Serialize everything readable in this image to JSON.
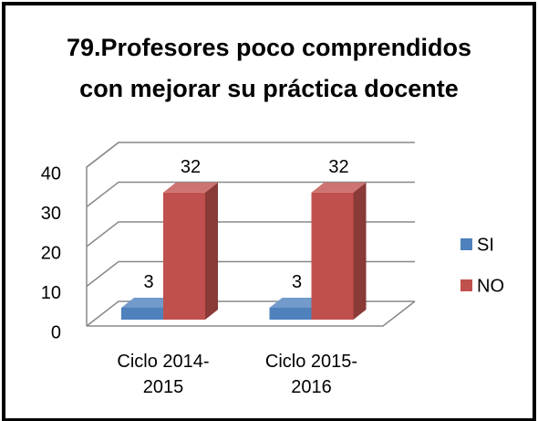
{
  "chart_data": {
    "type": "bar3d",
    "title": "79.Profesores poco comprendidos con mejorar su práctica docente",
    "categories": [
      "Ciclo 2014-2015",
      "Ciclo 2015-2016"
    ],
    "series": [
      {
        "name": "SI",
        "color": "#4f81bd",
        "values": [
          3,
          3
        ]
      },
      {
        "name": "NO",
        "color": "#c0504d",
        "values": [
          32,
          32
        ]
      }
    ],
    "ylim": [
      0,
      40
    ],
    "yticks": [
      0,
      10,
      20,
      30,
      40
    ],
    "grid": true,
    "legend": "right"
  }
}
